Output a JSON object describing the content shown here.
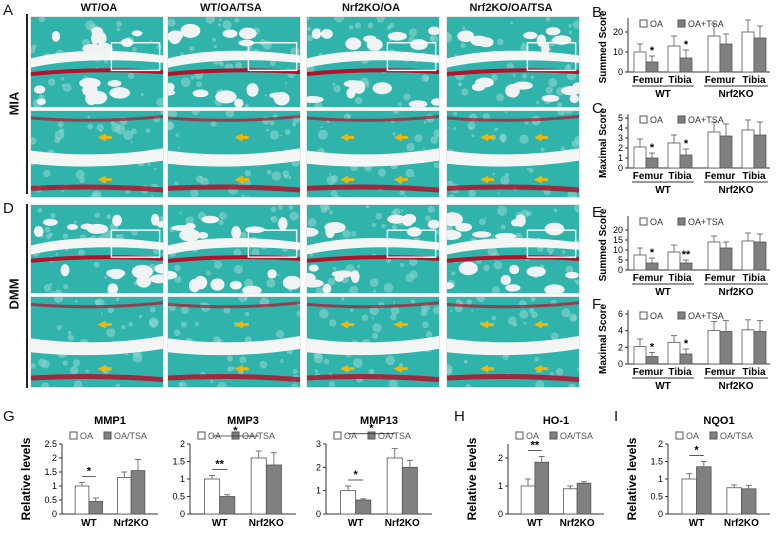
{
  "panel_letters": {
    "A": "A",
    "B": "B",
    "C": "C",
    "D": "D",
    "E": "E",
    "F": "F",
    "G": "G",
    "H": "H",
    "I": "I"
  },
  "columns": [
    "WT/OA",
    "WT/OA/TSA",
    "Nrf2KO/OA",
    "Nrf2KO/OA/TSA"
  ],
  "rows": [
    "MIA",
    "DMM"
  ],
  "colors": {
    "open": "#ffffff",
    "filled": "#808080",
    "stain_bg": "#2fb3ab",
    "stain_red": "#b3122b",
    "arrow": "#f2b705"
  },
  "chart_data": [
    {
      "id": "B",
      "type": "bar",
      "ylabel": "Summed Score",
      "ylim": [
        0,
        25
      ],
      "yticks": [
        0,
        10,
        20
      ],
      "categories": [
        "Femur",
        "Tibia",
        "Femur",
        "Tibia"
      ],
      "groups": [
        "WT",
        "Nrf2KO"
      ],
      "legend": [
        "OA",
        "OA+TSA"
      ],
      "series": [
        {
          "name": "OA",
          "values": [
            10,
            13,
            18,
            20
          ],
          "errors": [
            4,
            5,
            6,
            6
          ]
        },
        {
          "name": "OA+TSA",
          "values": [
            5,
            7,
            14,
            17
          ],
          "errors": [
            3,
            4,
            5,
            6
          ]
        }
      ],
      "stars": [
        "*",
        "*",
        "",
        ""
      ]
    },
    {
      "id": "C",
      "type": "bar",
      "ylabel": "Maximal Score",
      "ylim": [
        0,
        5
      ],
      "yticks": [
        0,
        1,
        2,
        3,
        4,
        5
      ],
      "categories": [
        "Femur",
        "Tibia",
        "Femur",
        "Tibia"
      ],
      "groups": [
        "WT",
        "Nrf2KO"
      ],
      "legend": [
        "OA",
        "OA+TSA"
      ],
      "series": [
        {
          "name": "OA",
          "values": [
            2.1,
            2.5,
            3.6,
            3.8
          ],
          "errors": [
            0.8,
            0.8,
            1,
            1
          ]
        },
        {
          "name": "OA+TSA",
          "values": [
            1.0,
            1.3,
            3.2,
            3.3
          ],
          "errors": [
            0.5,
            0.6,
            1.2,
            1.3
          ]
        }
      ],
      "stars": [
        "*",
        "*",
        "",
        ""
      ]
    },
    {
      "id": "E",
      "type": "bar",
      "ylabel": "Summed Score",
      "ylim": [
        0,
        25
      ],
      "yticks": [
        0,
        5,
        10,
        15,
        20
      ],
      "categories": [
        "Femur",
        "Tibia",
        "Femur",
        "Tibia"
      ],
      "groups": [
        "WT",
        "Nrf2KO"
      ],
      "legend": [
        "OA",
        "OA+TSA"
      ],
      "series": [
        {
          "name": "OA",
          "values": [
            7.5,
            9,
            14,
            14.5
          ],
          "errors": [
            3.5,
            3.5,
            3,
            4
          ]
        },
        {
          "name": "OA+TSA",
          "values": [
            3.5,
            3.5,
            11,
            14
          ],
          "errors": [
            2.5,
            1.5,
            3,
            4
          ]
        }
      ],
      "stars": [
        "*",
        "**",
        "",
        ""
      ]
    },
    {
      "id": "F",
      "type": "bar",
      "ylabel": "Maximal Score",
      "ylim": [
        0,
        6
      ],
      "yticks": [
        0,
        2,
        4,
        6
      ],
      "categories": [
        "Femur",
        "Tibia",
        "Femur",
        "Tibia"
      ],
      "groups": [
        "WT",
        "Nrf2KO"
      ],
      "legend": [
        "OA",
        "OA+TSA"
      ],
      "series": [
        {
          "name": "OA",
          "values": [
            2.1,
            2.6,
            4.0,
            4.1
          ],
          "errors": [
            0.9,
            0.8,
            1.1,
            1.2
          ]
        },
        {
          "name": "OA+TSA",
          "values": [
            0.9,
            1.2,
            3.9,
            3.9
          ],
          "errors": [
            0.5,
            0.6,
            1.3,
            1.3
          ]
        }
      ],
      "stars": [
        "*",
        "*",
        "",
        ""
      ]
    },
    {
      "id": "G1",
      "type": "bar",
      "title": "MMP1",
      "ylabel": "Relative levels",
      "ylim": [
        0,
        2.5
      ],
      "yticks": [
        0,
        0.5,
        1,
        1.5,
        2,
        2.5
      ],
      "categories": [
        "WT",
        "Nrf2KO"
      ],
      "legend": [
        "OA",
        "OA/TSA"
      ],
      "series": [
        {
          "name": "OA",
          "values": [
            1.0,
            1.3
          ],
          "errors": [
            0.12,
            0.2
          ]
        },
        {
          "name": "OA/TSA",
          "values": [
            0.45,
            1.55
          ],
          "errors": [
            0.12,
            0.4
          ]
        }
      ],
      "brackets": [
        {
          "label": "*",
          "from": 0,
          "to": 1
        }
      ]
    },
    {
      "id": "G2",
      "type": "bar",
      "title": "MMP3",
      "ylabel": "",
      "ylim": [
        0,
        2
      ],
      "yticks": [
        0,
        0.5,
        1,
        1.5,
        2
      ],
      "categories": [
        "WT",
        "Nrf2KO"
      ],
      "legend": [
        "OA",
        "OA/TSA"
      ],
      "series": [
        {
          "name": "OA",
          "values": [
            1.0,
            1.6
          ],
          "errors": [
            0.1,
            0.2
          ]
        },
        {
          "name": "OA/TSA",
          "values": [
            0.5,
            1.4
          ],
          "errors": [
            0.05,
            0.35
          ]
        }
      ],
      "brackets": [
        {
          "label": "**",
          "from": 0,
          "to": 1
        },
        {
          "label": "*",
          "from": 0,
          "to": 2
        }
      ]
    },
    {
      "id": "G3",
      "type": "bar",
      "title": "MMP13",
      "ylabel": "",
      "ylim": [
        0,
        3
      ],
      "yticks": [
        0,
        1,
        2,
        3
      ],
      "categories": [
        "WT",
        "Nrf2KO"
      ],
      "legend": [
        "OA",
        "OA/TSA"
      ],
      "series": [
        {
          "name": "OA",
          "values": [
            1.0,
            2.4
          ],
          "errors": [
            0.2,
            0.4
          ]
        },
        {
          "name": "OA/TSA",
          "values": [
            0.6,
            2.0
          ],
          "errors": [
            0.05,
            0.3
          ]
        }
      ],
      "brackets": [
        {
          "label": "*",
          "from": 0,
          "to": 1
        },
        {
          "label": "*",
          "from": 0,
          "to": 2
        }
      ]
    },
    {
      "id": "H",
      "type": "bar",
      "title": "HO-1",
      "ylabel": "Relative levels",
      "ylim": [
        0,
        2.5
      ],
      "yticks": [
        0,
        1,
        2
      ],
      "categories": [
        "WT",
        "Nrf2KO"
      ],
      "legend": [
        "OA",
        "OA/TSA"
      ],
      "series": [
        {
          "name": "OA",
          "values": [
            1.0,
            0.9
          ],
          "errors": [
            0.25,
            0.1
          ]
        },
        {
          "name": "OA/TSA",
          "values": [
            1.85,
            1.1
          ],
          "errors": [
            0.2,
            0.05
          ]
        }
      ],
      "brackets": [
        {
          "label": "**",
          "from": 0,
          "to": 1
        }
      ]
    },
    {
      "id": "I",
      "type": "bar",
      "title": "NQO1",
      "ylabel": "Relative levels",
      "ylim": [
        0,
        2
      ],
      "yticks": [
        0,
        0.5,
        1,
        1.5,
        2
      ],
      "categories": [
        "WT",
        "Nrf2KO"
      ],
      "legend": [
        "OA",
        "OA/TSA"
      ],
      "series": [
        {
          "name": "OA",
          "values": [
            1.0,
            0.75
          ],
          "errors": [
            0.15,
            0.08
          ]
        },
        {
          "name": "OA/TSA",
          "values": [
            1.35,
            0.72
          ],
          "errors": [
            0.15,
            0.1
          ]
        }
      ],
      "brackets": [
        {
          "label": "*",
          "from": 0,
          "to": 1
        }
      ]
    }
  ]
}
